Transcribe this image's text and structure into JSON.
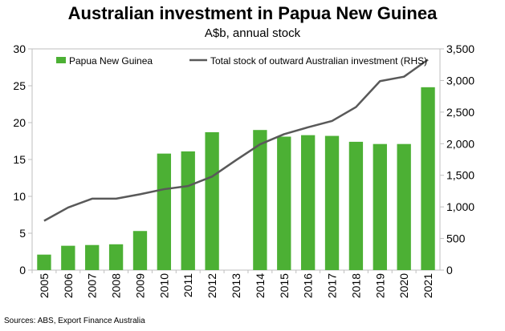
{
  "chart_data": {
    "type": "bar",
    "title": "Australian investment in Papua New Guinea",
    "subtitle": "A$b, annual stock",
    "source": "Sources: ABS, Export Finance Australia",
    "categories": [
      "2005",
      "2006",
      "2007",
      "2008",
      "2009",
      "2010",
      "2011",
      "2012",
      "2013",
      "2014",
      "2015",
      "2016",
      "2017",
      "2018",
      "2019",
      "2020",
      "2021"
    ],
    "series": [
      {
        "name": "Papua New Guinea",
        "type": "bar",
        "axis": "left",
        "color": "#4cb034",
        "values": [
          2.1,
          3.3,
          3.4,
          3.5,
          5.3,
          15.8,
          16.1,
          18.7,
          null,
          19.0,
          18.1,
          18.3,
          18.2,
          17.4,
          17.1,
          17.1,
          24.8
        ]
      },
      {
        "name": "Total stock of outward Australian investment (RHS)",
        "type": "line",
        "axis": "right",
        "color": "#595959",
        "values": [
          780,
          990,
          1130,
          1130,
          1200,
          1280,
          1330,
          1480,
          1740,
          1990,
          2150,
          2260,
          2360,
          2580,
          2990,
          3060,
          3330
        ]
      }
    ],
    "ylim_left": [
      0,
      30
    ],
    "yticks_left": [
      "0",
      "5",
      "10",
      "15",
      "20",
      "25",
      "30"
    ],
    "ylim_right": [
      0,
      3500
    ],
    "yticks_right": [
      "0",
      "500",
      "1,000",
      "1,500",
      "2,000",
      "2,500",
      "3,000",
      "3,500"
    ],
    "legend_position": "top-left",
    "grid": false
  }
}
